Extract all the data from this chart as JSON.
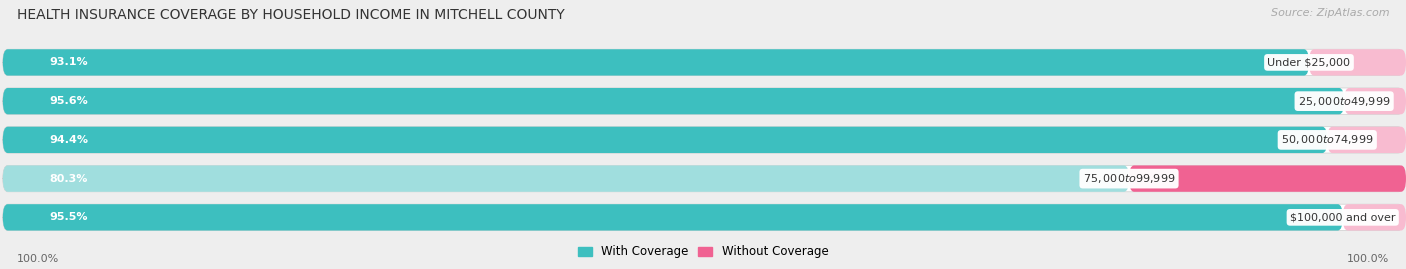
{
  "title": "HEALTH INSURANCE COVERAGE BY HOUSEHOLD INCOME IN MITCHELL COUNTY",
  "source": "Source: ZipAtlas.com",
  "categories": [
    "Under $25,000",
    "$25,000 to $49,999",
    "$50,000 to $74,999",
    "$75,000 to $99,999",
    "$100,000 and over"
  ],
  "with_coverage": [
    93.1,
    95.6,
    94.4,
    80.3,
    95.5
  ],
  "without_coverage": [
    6.9,
    4.4,
    5.6,
    19.7,
    4.5
  ],
  "with_coverage_color": "#3dbfbf",
  "without_coverage_color_bright": "#f06292",
  "without_coverage_color_light": "#f8bbd0",
  "background_color": "#eeeeee",
  "bar_background_color": "#ffffff",
  "title_fontsize": 10,
  "label_fontsize": 8,
  "legend_fontsize": 8.5,
  "source_fontsize": 8,
  "bottom_label": "100.0%"
}
